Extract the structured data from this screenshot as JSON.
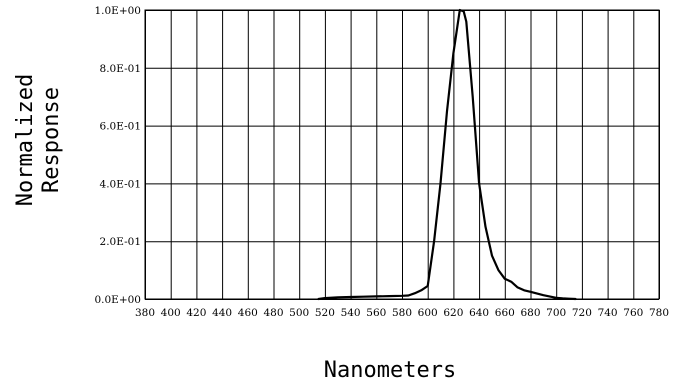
{
  "chart_data": {
    "type": "line",
    "title": "",
    "xlabel": "Nanometers",
    "ylabel_lines": [
      "Normalized",
      "Response"
    ],
    "xlim": [
      380,
      780
    ],
    "ylim": [
      0,
      1
    ],
    "x_ticks": [
      380,
      400,
      420,
      440,
      460,
      480,
      500,
      520,
      540,
      560,
      580,
      600,
      620,
      640,
      660,
      680,
      700,
      720,
      740,
      760,
      780
    ],
    "x_tick_labels": [
      "380",
      "400",
      "420",
      "440",
      "460",
      "480",
      "500",
      "520",
      "540",
      "560",
      "580",
      "600",
      "620",
      "640",
      "660",
      "680",
      "700",
      "720",
      "740",
      "760",
      "780"
    ],
    "y_ticks": [
      0,
      0.2,
      0.4,
      0.6,
      0.8,
      1.0
    ],
    "y_tick_labels": [
      "0.0E+00",
      "2.0E-01",
      "4.0E-01",
      "6.0E-01",
      "8.0E-01",
      "1.0E+00"
    ],
    "grid": true,
    "legend": "none",
    "series": [
      {
        "x": [
          515,
          520,
          530,
          540,
          550,
          560,
          570,
          580,
          585,
          590,
          595,
          600,
          605,
          610,
          615,
          620,
          625,
          628,
          630,
          635,
          640,
          645,
          650,
          655,
          660,
          665,
          670,
          675,
          680,
          690,
          700,
          705,
          710,
          715
        ],
        "y": [
          0.0,
          0.003,
          0.006,
          0.007,
          0.008,
          0.009,
          0.01,
          0.011,
          0.012,
          0.02,
          0.03,
          0.045,
          0.2,
          0.4,
          0.65,
          0.85,
          1.0,
          0.995,
          0.96,
          0.7,
          0.4,
          0.25,
          0.15,
          0.1,
          0.07,
          0.06,
          0.04,
          0.03,
          0.025,
          0.013,
          0.004,
          0.002,
          0.001,
          0.0
        ],
        "color": "#000000"
      }
    ]
  }
}
